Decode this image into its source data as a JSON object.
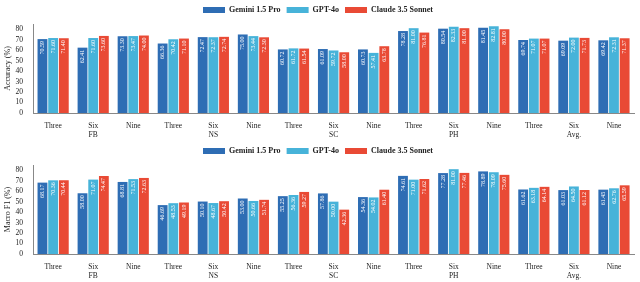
{
  "chart_data": [
    {
      "type": "bar",
      "y_label": "Accuracy (%)",
      "categories": [
        "Three",
        "Six",
        "Nine",
        "Three",
        "Six",
        "Nine",
        "Three",
        "Six",
        "Nine",
        "Three",
        "Six",
        "Nine",
        "Three",
        "Six",
        "Nine"
      ],
      "groups": [
        "FB",
        "NS",
        "SC",
        "PH",
        "Avg."
      ],
      "ylim": [
        0,
        85
      ],
      "yticks": [
        0,
        10,
        20,
        30,
        40,
        50,
        60,
        70,
        80
      ],
      "grid": false,
      "legend": "top",
      "data_labels": true,
      "series": [
        {
          "name": "Gemini 1.5 Pro",
          "color": "#2e6db4",
          "values": [
            70.59,
            62.41,
            73.3,
            66.36,
            72.47,
            75.0,
            60.72,
            61.09,
            60.73,
            78.28,
            80.54,
            81.45,
            69.74,
            69.09,
            69.42
          ],
          "value_labels": [
            "70.59",
            "62.41",
            "73.30",
            "66.36",
            "72.47",
            "75.00",
            "60.72",
            "61.09",
            "60.73",
            "78.28",
            "80.54",
            "81.45",
            "69.74",
            "69.09",
            "69.42"
          ]
        },
        {
          "name": "GPT-4o",
          "color": "#47b3d9",
          "values": [
            71.6,
            71.6,
            73.47,
            70.42,
            72.37,
            73.44,
            61.72,
            59.72,
            57.41,
            81.0,
            82.33,
            82.81,
            71.07,
            72.0,
            72.31
          ],
          "value_labels": [
            "71.60",
            "71.60",
            "73.47",
            "70.42",
            "72.37",
            "73.44",
            "61.72",
            "59.72",
            "57.41",
            "81.00",
            "82.33",
            "82.81",
            "71.07",
            "72.00",
            "72.31"
          ]
        },
        {
          "name": "Claude 3.5 Sonnet",
          "color": "#e94a35",
          "values": [
            71.4,
            73.6,
            74.0,
            71.1,
            72.74,
            72.3,
            61.54,
            58.0,
            63.78,
            76.81,
            81.0,
            80.0,
            71.07,
            71.73,
            71.37
          ],
          "value_labels": [
            "71.40",
            "73.60",
            "74.00",
            "71.10",
            "72.74",
            "72.30",
            "61.54",
            "58.00",
            "63.78",
            "76.81",
            "81.00",
            "80.00",
            "71.07",
            "71.73",
            "71.37"
          ]
        }
      ]
    },
    {
      "type": "bar",
      "y_label": "Macro F1 (%)",
      "categories": [
        "Three",
        "Six",
        "Nine",
        "Three",
        "Six",
        "Nine",
        "Three",
        "Six",
        "Nine",
        "Three",
        "Six",
        "Nine",
        "Three",
        "Six",
        "Nine"
      ],
      "groups": [
        "FB",
        "NS",
        "SC",
        "PH",
        "Avg."
      ],
      "ylim": [
        0,
        85
      ],
      "yticks": [
        0,
        10,
        20,
        30,
        40,
        50,
        60,
        70,
        80
      ],
      "grid": false,
      "legend": "top",
      "data_labels": true,
      "series": [
        {
          "name": "Gemini 1.5 Pro",
          "color": "#2e6db4",
          "values": [
            68.17,
            58.0,
            68.81,
            46.69,
            50.1,
            53.0,
            55.25,
            57.86,
            54.36,
            74.61,
            77.28,
            78.89,
            61.62,
            61.03,
            61.45
          ],
          "value_labels": [
            "68.17",
            "58.00",
            "68.81",
            "46.69",
            "50.10",
            "53.00",
            "55.25",
            "57.86",
            "54.36",
            "74.61",
            "77.28",
            "78.89",
            "61.62",
            "61.03",
            "61.45"
          ]
        },
        {
          "name": "GPT-4o",
          "color": "#47b3d9",
          "values": [
            70.36,
            71.07,
            71.53,
            48.53,
            48.67,
            50.66,
            56.36,
            50.0,
            54.02,
            71.0,
            81.0,
            78.09,
            63.18,
            64.5,
            62.76
          ],
          "value_labels": [
            "70.36",
            "71.07",
            "71.53",
            "48.53",
            "48.67",
            "50.66",
            "56.36",
            "50.00",
            "54.02",
            "71.00",
            "81.00",
            "78.09",
            "63.18",
            "64.50",
            "62.76"
          ]
        },
        {
          "name": "Claude 3.5 Sonnet",
          "color": "#e94a35",
          "values": [
            70.44,
            74.47,
            72.63,
            49.19,
            50.42,
            51.74,
            59.27,
            42.36,
            61.4,
            71.62,
            77.46,
            75.6,
            64.14,
            61.12,
            65.59
          ],
          "value_labels": [
            "70.44",
            "74.47",
            "72.63",
            "49.19",
            "50.42",
            "51.74",
            "59.27",
            "42.36",
            "61.40",
            "71.62",
            "77.46",
            "75.60",
            "64.14",
            "61.12",
            "65.59"
          ]
        }
      ]
    }
  ]
}
